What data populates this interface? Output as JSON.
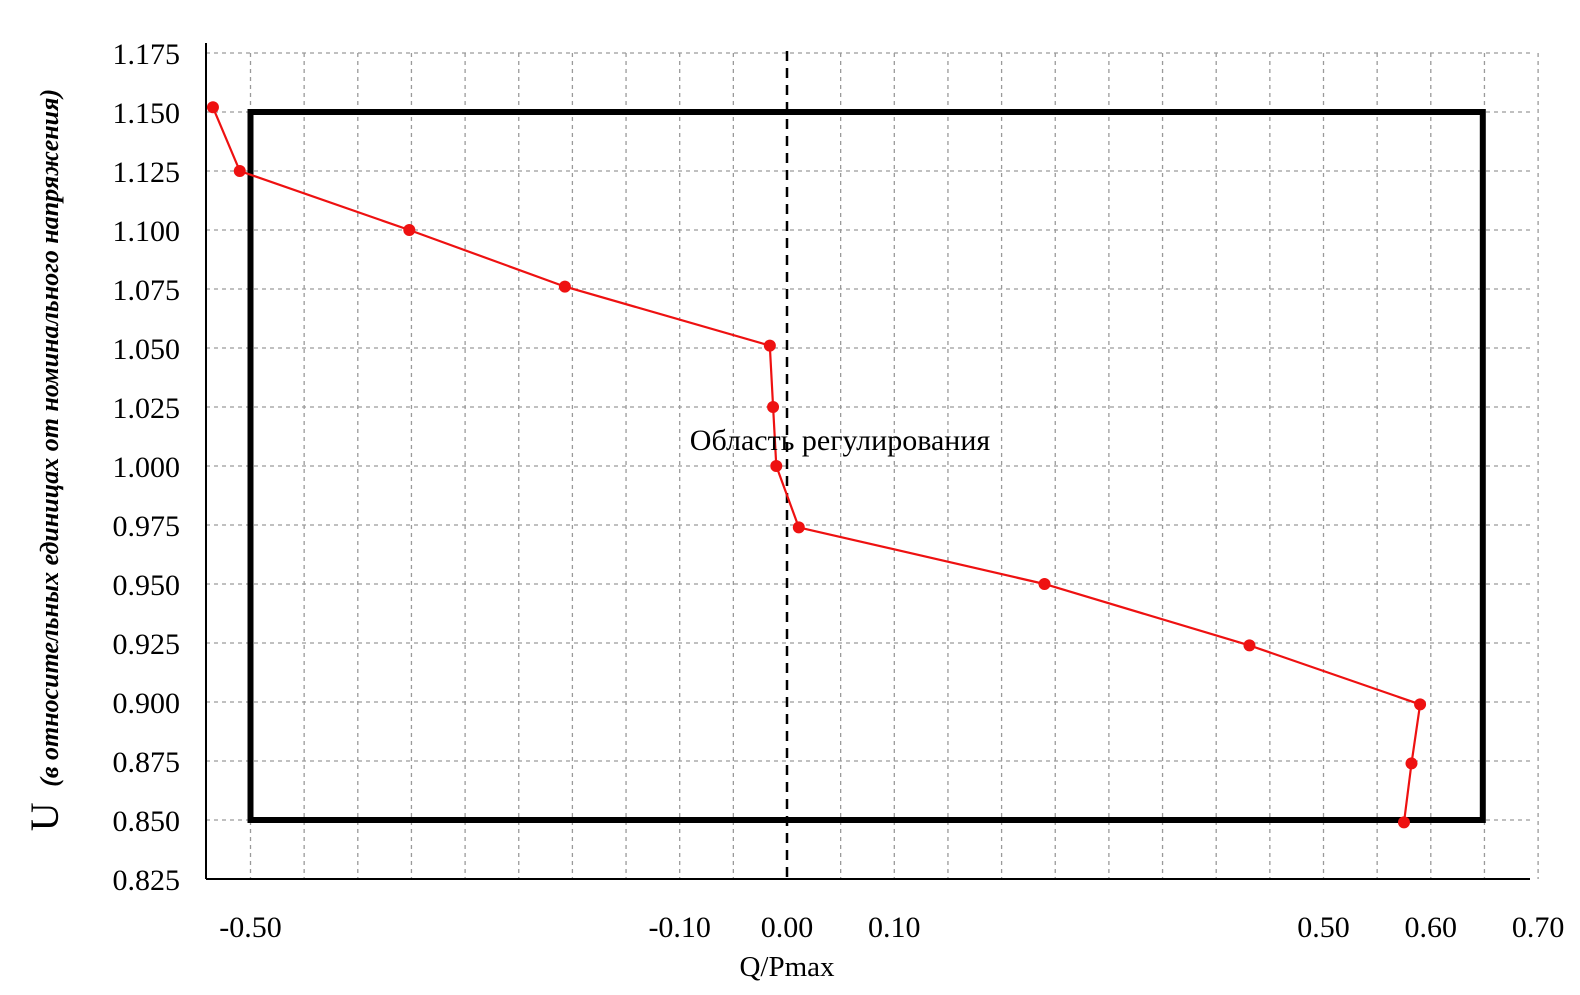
{
  "chart_data": {
    "type": "line",
    "xlabel": "Q/Pmax",
    "ylabel_main": "U",
    "ylabel_sub": "(в относительных единицах от номинального напряжения)",
    "annotation": "Область регулирования",
    "xlim": [
      -0.54,
      0.7
    ],
    "ylim": [
      0.825,
      1.175
    ],
    "x_tick_labels": [
      {
        "value": -0.5,
        "label": "-0.50"
      },
      {
        "value": -0.1,
        "label": "-0.10"
      },
      {
        "value": 0.0,
        "label": "0.00"
      },
      {
        "value": 0.1,
        "label": "0.10"
      },
      {
        "value": 0.5,
        "label": "0.50"
      },
      {
        "value": 0.6,
        "label": "0.60"
      },
      {
        "value": 0.7,
        "label": "0.70"
      }
    ],
    "y_ticks": [
      0.825,
      0.85,
      0.875,
      0.9,
      0.925,
      0.95,
      0.975,
      1.0,
      1.025,
      1.05,
      1.075,
      1.1,
      1.125,
      1.15,
      1.175
    ],
    "y_tick_labels": [
      "0.825",
      "0.850",
      "0.875",
      "0.900",
      "0.925",
      "0.950",
      "0.975",
      "1.000",
      "1.025",
      "1.050",
      "1.075",
      "1.100",
      "1.125",
      "1.150",
      "1.175"
    ],
    "grid_x": [
      -0.5,
      -0.45,
      -0.4,
      -0.35,
      -0.3,
      -0.25,
      -0.2,
      -0.15,
      -0.1,
      -0.05,
      0.05,
      0.1,
      0.15,
      0.2,
      0.25,
      0.3,
      0.35,
      0.4,
      0.45,
      0.5,
      0.55,
      0.6,
      0.65,
      0.7
    ],
    "grid": true,
    "region": {
      "x": [
        -0.5,
        0.6
      ],
      "y": [
        0.85,
        1.15
      ]
    },
    "zero_line_x": 0.0,
    "series": [
      {
        "color": "#ee1111",
        "points": [
          {
            "x": -0.535,
            "y": 1.152
          },
          {
            "x": -0.51,
            "y": 1.125
          },
          {
            "x": -0.352,
            "y": 1.1
          },
          {
            "x": -0.207,
            "y": 1.076
          },
          {
            "x": -0.016,
            "y": 1.051
          },
          {
            "x": -0.013,
            "y": 1.025
          },
          {
            "x": -0.01,
            "y": 1.0
          },
          {
            "x": 0.011,
            "y": 0.974
          },
          {
            "x": 0.24,
            "y": 0.95
          },
          {
            "x": 0.431,
            "y": 0.924
          },
          {
            "x": 0.59,
            "y": 0.899
          },
          {
            "x": 0.582,
            "y": 0.874
          },
          {
            "x": 0.575,
            "y": 0.849
          }
        ]
      }
    ]
  }
}
